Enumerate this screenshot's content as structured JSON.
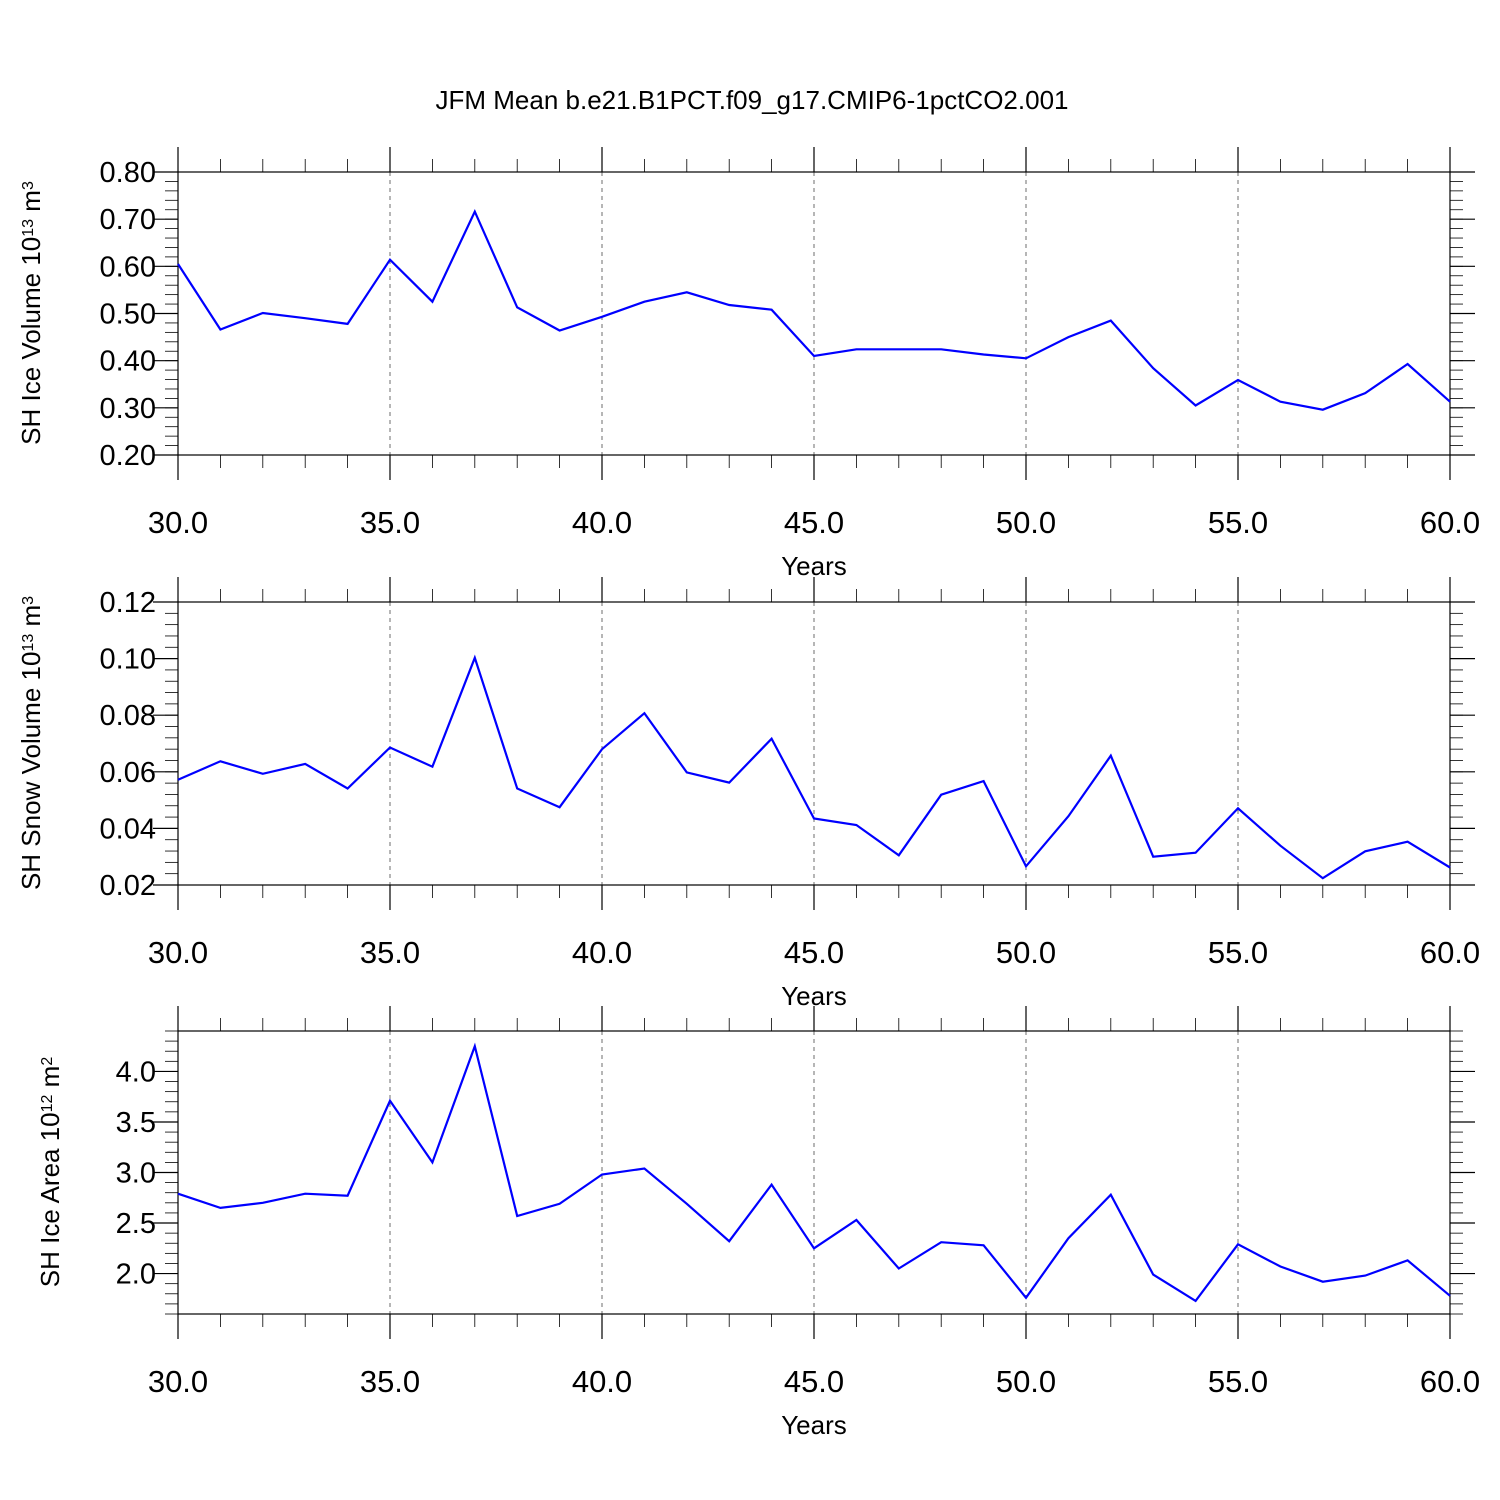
{
  "title": "JFM Mean b.e21.B1PCT.f09_g17.CMIP6-1pctCO2.001",
  "style": {
    "line_color": "#0000ff",
    "axis_color": "#000000",
    "grid_color": "#6e6e6e"
  },
  "chart_data": [
    {
      "type": "line",
      "title": "",
      "xlabel": "Years",
      "ylabel": {
        "main": "SH Ice Volume 10",
        "exponent": "13",
        "unit": "m",
        "unit_exponent": "3"
      },
      "xlim": [
        30,
        60
      ],
      "ylim": [
        0.2,
        0.8
      ],
      "xticks": [
        "30.0",
        "35.0",
        "40.0",
        "45.0",
        "50.0",
        "55.0",
        "60.0"
      ],
      "yticks": [
        "0.20",
        "0.30",
        "0.40",
        "0.50",
        "0.60",
        "0.70",
        "0.80"
      ],
      "grid": "vertical-dashed",
      "series": [
        {
          "x": [
            30,
            31,
            32,
            33,
            34,
            35,
            36,
            37,
            38,
            39,
            40,
            41,
            42,
            43,
            44,
            45,
            46,
            47,
            48,
            49,
            50,
            51,
            52,
            53,
            54,
            55,
            56,
            57,
            58,
            59,
            60
          ],
          "values": [
            0.605,
            0.466,
            0.501,
            0.49,
            0.478,
            0.614,
            0.525,
            0.716,
            0.513,
            0.464,
            0.493,
            0.525,
            0.545,
            0.518,
            0.508,
            0.41,
            0.424,
            0.424,
            0.424,
            0.413,
            0.405,
            0.45,
            0.485,
            0.384,
            0.305,
            0.359,
            0.313,
            0.296,
            0.331,
            0.393,
            0.313
          ]
        }
      ]
    },
    {
      "type": "line",
      "title": "",
      "xlabel": "Years",
      "ylabel": {
        "main": "SH Snow Volume 10",
        "exponent": "13",
        "unit": "m",
        "unit_exponent": "3"
      },
      "xlim": [
        30,
        60
      ],
      "ylim": [
        0.02,
        0.12
      ],
      "xticks": [
        "30.0",
        "35.0",
        "40.0",
        "45.0",
        "50.0",
        "55.0",
        "60.0"
      ],
      "yticks": [
        "0.02",
        "0.04",
        "0.06",
        "0.08",
        "0.10",
        "0.12"
      ],
      "grid": "vertical-dashed",
      "series": [
        {
          "x": [
            30,
            31,
            32,
            33,
            34,
            35,
            36,
            37,
            38,
            39,
            40,
            41,
            42,
            43,
            44,
            45,
            46,
            47,
            48,
            49,
            50,
            51,
            52,
            53,
            54,
            55,
            56,
            57,
            58,
            59,
            60
          ],
          "values": [
            0.0572,
            0.0637,
            0.0593,
            0.0628,
            0.0541,
            0.0686,
            0.0618,
            0.1003,
            0.0541,
            0.0475,
            0.068,
            0.0807,
            0.0598,
            0.0562,
            0.0717,
            0.0435,
            0.0412,
            0.0305,
            0.0519,
            0.0567,
            0.0266,
            0.0443,
            0.0657,
            0.03,
            0.0314,
            0.0471,
            0.0339,
            0.0224,
            0.0319,
            0.0353,
            0.0262
          ]
        }
      ]
    },
    {
      "type": "line",
      "title": "",
      "xlabel": "Years",
      "ylabel": {
        "main": "SH Ice Area 10",
        "exponent": "12",
        "unit": "m",
        "unit_exponent": "2"
      },
      "xlim": [
        30,
        60
      ],
      "ylim": [
        1.6,
        4.4
      ],
      "xticks": [
        "30.0",
        "35.0",
        "40.0",
        "45.0",
        "50.0",
        "55.0",
        "60.0"
      ],
      "yticks": [
        "2.0",
        "2.5",
        "3.0",
        "3.5",
        "4.0"
      ],
      "grid": "vertical-dashed",
      "series": [
        {
          "x": [
            30,
            31,
            32,
            33,
            34,
            35,
            36,
            37,
            38,
            39,
            40,
            41,
            42,
            43,
            44,
            45,
            46,
            47,
            48,
            49,
            50,
            51,
            52,
            53,
            54,
            55,
            56,
            57,
            58,
            59,
            60
          ],
          "values": [
            2.79,
            2.65,
            2.7,
            2.79,
            2.77,
            3.71,
            3.1,
            4.25,
            2.57,
            2.69,
            2.98,
            3.04,
            2.69,
            2.32,
            2.88,
            2.25,
            2.53,
            2.05,
            2.31,
            2.28,
            1.76,
            2.35,
            2.78,
            1.99,
            1.73,
            2.29,
            2.07,
            1.92,
            1.98,
            2.13,
            1.78
          ]
        }
      ]
    }
  ]
}
